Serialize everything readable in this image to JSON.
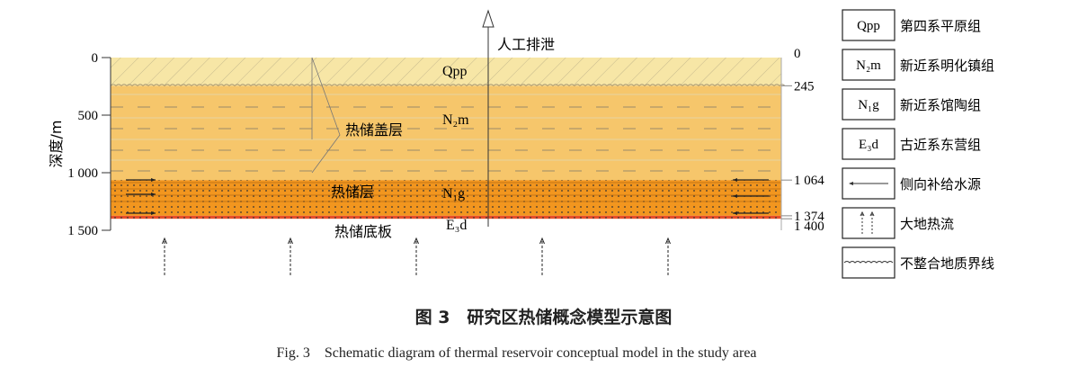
{
  "axis": {
    "label": "深度/m",
    "ticks": [
      0,
      500,
      1000,
      1500
    ],
    "tick_labels": [
      "0",
      "500",
      "1 000",
      "1 500"
    ],
    "range": [
      0,
      1500
    ]
  },
  "right_depths": [
    {
      "depth": 0,
      "label": "0"
    },
    {
      "depth": 245,
      "label": "245"
    },
    {
      "depth": 1064,
      "label": "1 064"
    },
    {
      "depth": 1374,
      "label": "1 374"
    },
    {
      "depth": 1400,
      "label": "1 400"
    }
  ],
  "layers": [
    {
      "code": "Qpp",
      "top": 0,
      "bottom": 245,
      "color": "#f7e6a6"
    },
    {
      "code": "N2m",
      "top": 245,
      "bottom": 1064,
      "color": "#f6c66b"
    },
    {
      "code": "N1g",
      "top": 1064,
      "bottom": 1374,
      "color": "#f2961f"
    },
    {
      "code": "E3d",
      "top": 1374,
      "bottom": 1400,
      "color": "#e8502a"
    }
  ],
  "labels": {
    "discharge": "人工排泄",
    "cap_rock": "热储盖层",
    "reservoir": "热储层",
    "floor": "热储底板",
    "qpp": "Qpp",
    "n2m": "N₂m",
    "n1g": "N₁g",
    "e3d": "E₃d"
  },
  "legend": [
    {
      "symbol": "Qpp",
      "label": "第四系平原组"
    },
    {
      "symbol": "N₂m",
      "label": "新近系明化镇组"
    },
    {
      "symbol": "N₁g",
      "label": "新近系馆陶组"
    },
    {
      "symbol": "E₃d",
      "label": "古近系东营组"
    },
    {
      "symbol": "arrow-left-icon",
      "label": "侧向补给水源"
    },
    {
      "symbol": "heat-flow-icon",
      "label": "大地热流"
    },
    {
      "symbol": "wavy-line-icon",
      "label": "不整合地质界线"
    }
  ],
  "caption": {
    "cn": "图 3　研究区热储概念模型示意图",
    "en": "Fig. 3　Schematic diagram of thermal reservoir conceptual model in the study area"
  }
}
